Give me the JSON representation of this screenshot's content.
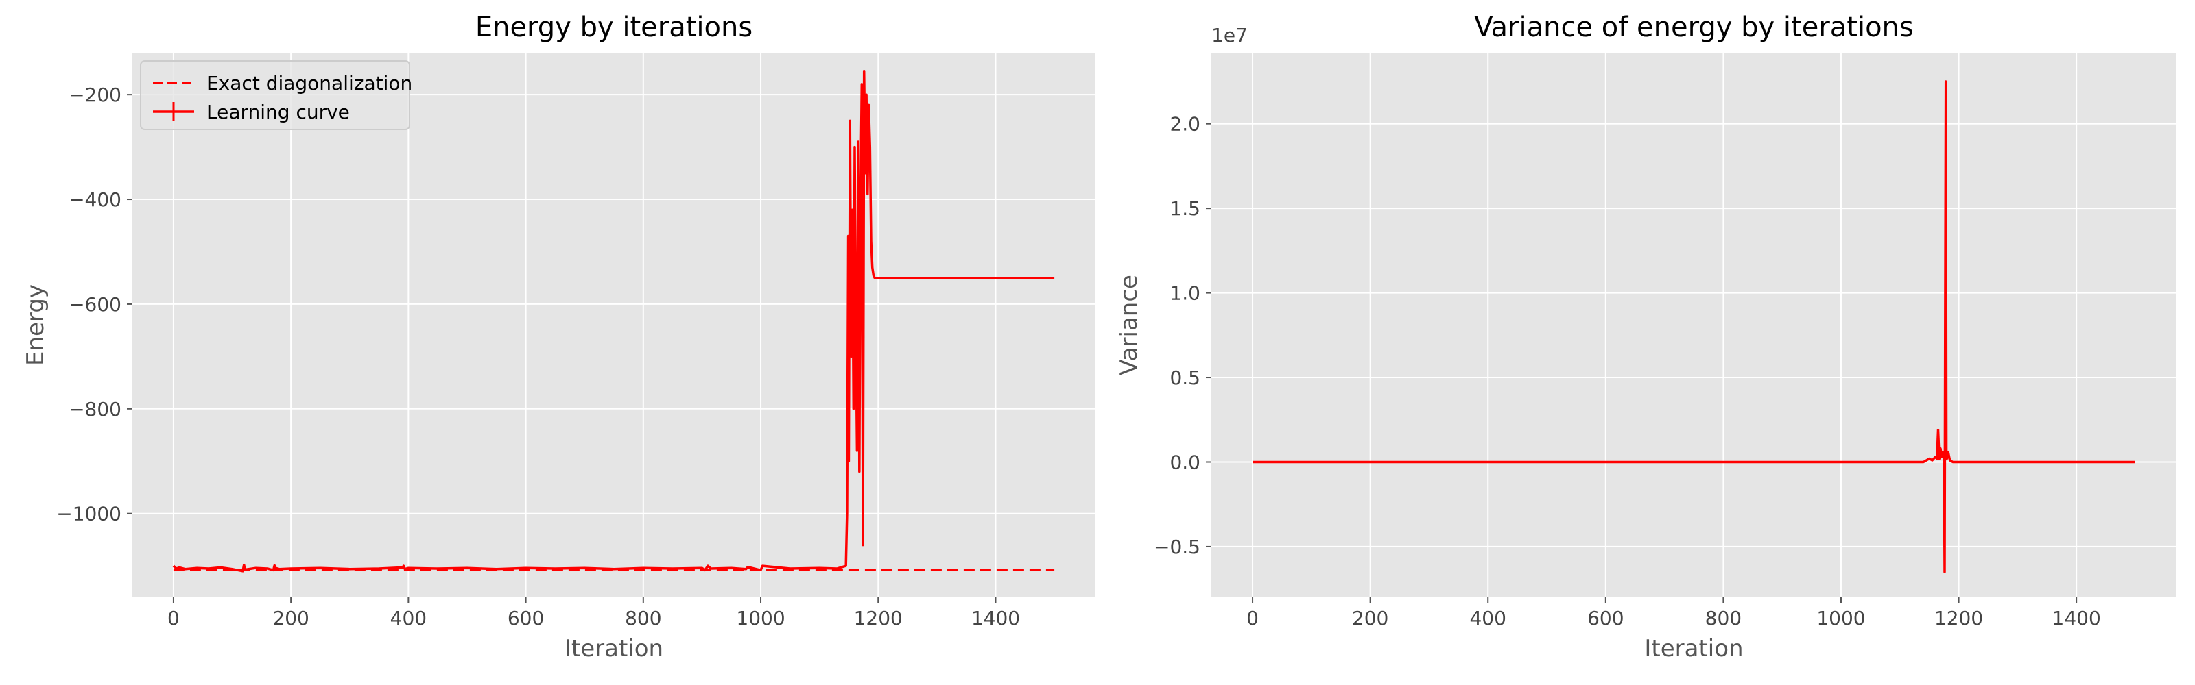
{
  "chart_data": [
    {
      "type": "line",
      "title": "Energy by iterations",
      "xlabel": "Iteration",
      "ylabel": "Energy",
      "xlim": [
        -70,
        1570
      ],
      "ylim": [
        -1160,
        -120
      ],
      "xticks": [
        0,
        200,
        400,
        600,
        800,
        1000,
        1200,
        1400
      ],
      "xtick_labels": [
        "0",
        "200",
        "400",
        "600",
        "800",
        "1000",
        "1200",
        "1400"
      ],
      "yticks": [
        -1000,
        -800,
        -600,
        -400,
        -200
      ],
      "ytick_labels": [
        "−1000",
        "−800",
        "−600",
        "−400",
        "−200"
      ],
      "grid": true,
      "legend": {
        "placement": "top-left",
        "entries": [
          "Exact diagonalization",
          "Learning curve"
        ]
      },
      "series": [
        {
          "name": "Exact diagonalization",
          "style": "dashed",
          "color": "#ff0000",
          "x": [
            0,
            1500
          ],
          "y": [
            -1108,
            -1108
          ]
        },
        {
          "name": "Learning curve",
          "style": "solid-errorbar",
          "color": "#ff0000",
          "x": [
            0,
            5,
            10,
            20,
            40,
            60,
            80,
            100,
            118,
            120,
            122,
            140,
            160,
            170,
            172,
            174,
            180,
            200,
            250,
            300,
            350,
            390,
            392,
            394,
            400,
            450,
            500,
            550,
            600,
            650,
            700,
            750,
            800,
            850,
            900,
            905,
            910,
            915,
            950,
            975,
            978,
            1000,
            1003,
            1050,
            1100,
            1130,
            1145,
            1147,
            1149,
            1150,
            1152,
            1154,
            1156,
            1158,
            1160,
            1162,
            1164,
            1166,
            1168,
            1170,
            1172,
            1174,
            1176,
            1178,
            1180,
            1182,
            1184,
            1186,
            1188,
            1190,
            1192,
            1194,
            1196,
            1200,
            1250,
            1300,
            1350,
            1400,
            1450,
            1500
          ],
          "y": [
            -1100,
            -1105,
            -1103,
            -1106,
            -1104,
            -1105,
            -1103,
            -1106,
            -1110,
            -1098,
            -1107,
            -1104,
            -1105,
            -1108,
            -1099,
            -1104,
            -1106,
            -1105,
            -1104,
            -1106,
            -1105,
            -1103,
            -1100,
            -1106,
            -1104,
            -1105,
            -1104,
            -1106,
            -1104,
            -1105,
            -1104,
            -1106,
            -1104,
            -1105,
            -1104,
            -1108,
            -1100,
            -1105,
            -1104,
            -1106,
            -1102,
            -1108,
            -1100,
            -1105,
            -1104,
            -1105,
            -1100,
            -1000,
            -470,
            -900,
            -250,
            -700,
            -420,
            -800,
            -300,
            -650,
            -880,
            -290,
            -920,
            -380,
            -180,
            -1060,
            -155,
            -350,
            -200,
            -390,
            -220,
            -300,
            -480,
            -530,
            -545,
            -550,
            -550,
            -550,
            -550,
            -550,
            -550,
            -550,
            -550,
            -550
          ]
        }
      ]
    },
    {
      "type": "line",
      "title": "Variance of energy by iterations",
      "xlabel": "Iteration",
      "ylabel": "Variance",
      "offset_text": "1e7",
      "xlim": [
        -70,
        1570
      ],
      "ylim": [
        -0.8,
        2.42
      ],
      "xticks": [
        0,
        200,
        400,
        600,
        800,
        1000,
        1200,
        1400
      ],
      "xtick_labels": [
        "0",
        "200",
        "400",
        "600",
        "800",
        "1000",
        "1200",
        "1400"
      ],
      "yticks": [
        -0.5,
        0.0,
        0.5,
        1.0,
        1.5,
        2.0
      ],
      "ytick_labels": [
        "−0.5",
        "0.0",
        "0.5",
        "1.0",
        "1.5",
        "2.0"
      ],
      "grid": true,
      "series": [
        {
          "style": "solid",
          "color": "#ff0000",
          "x": [
            0,
            500,
            1000,
            1140,
            1150,
            1155,
            1160,
            1163,
            1165,
            1167,
            1169,
            1171,
            1173,
            1175,
            1176,
            1177,
            1178,
            1179,
            1180,
            1182,
            1185,
            1190,
            1200,
            1300,
            1400,
            1500
          ],
          "y": [
            0,
            0,
            0,
            0,
            0.02,
            0.01,
            0.03,
            0.02,
            0.19,
            0.02,
            0.08,
            0.03,
            0.06,
            0.02,
            -0.65,
            0.8,
            2.25,
            0.05,
            0.02,
            0.06,
            0.01,
            0.0,
            0,
            0,
            0,
            0
          ]
        }
      ]
    }
  ]
}
